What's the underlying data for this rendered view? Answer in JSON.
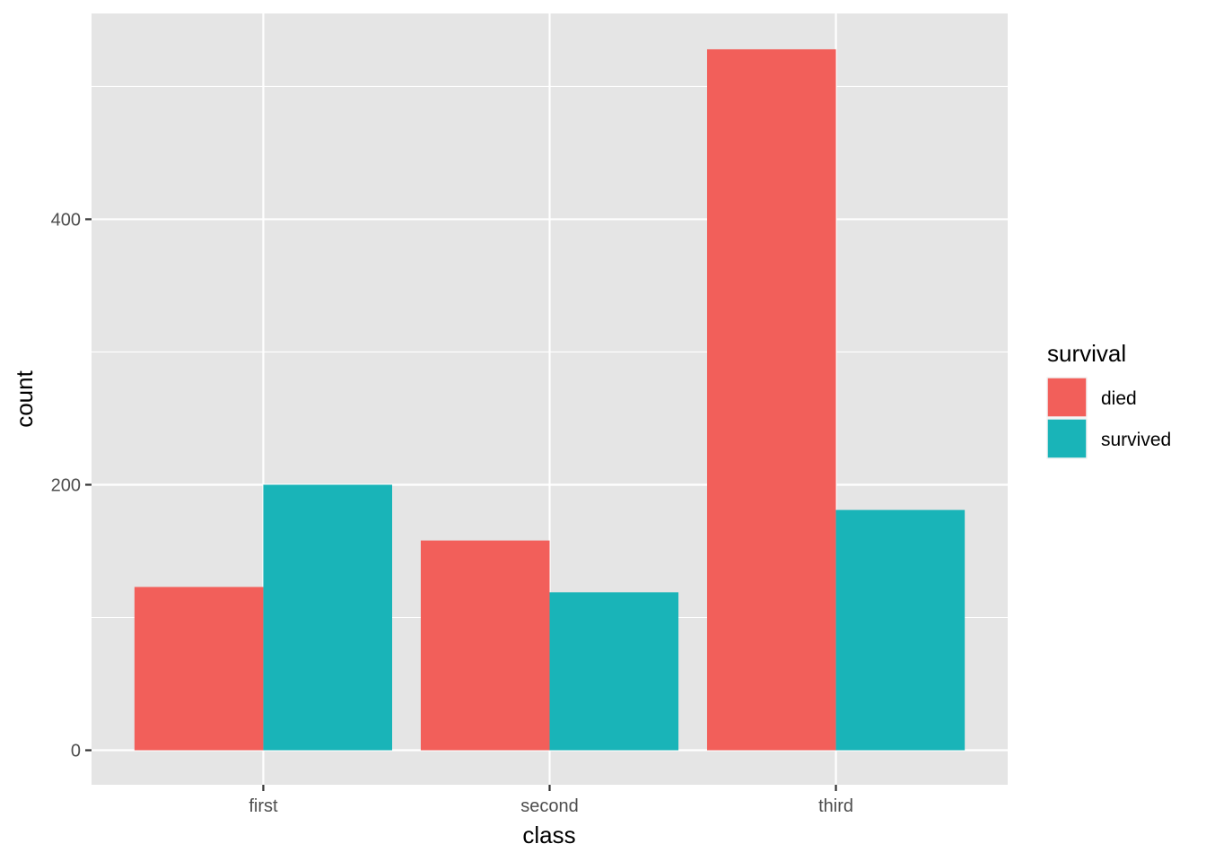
{
  "chart_data": {
    "type": "bar",
    "categories": [
      "first",
      "second",
      "third"
    ],
    "series": [
      {
        "name": "died",
        "values": [
          123,
          158,
          528
        ],
        "color": "#F25F5A"
      },
      {
        "name": "survived",
        "values": [
          200,
          119,
          181
        ],
        "color": "#19B4B8"
      }
    ],
    "title": "",
    "xlabel": "class",
    "ylabel": "count",
    "ylim": [
      -26,
      555
    ],
    "yticks": [
      0,
      200,
      400
    ],
    "y_minor": [
      100,
      300,
      500
    ],
    "y_tick_labels": [
      "0",
      "200",
      "400"
    ],
    "grid": true,
    "legend": {
      "title": "survival",
      "position": "right",
      "entries": [
        "died",
        "survived"
      ]
    },
    "panel_color": "#E5E5E5",
    "grid_color": "#FFFFFF"
  }
}
